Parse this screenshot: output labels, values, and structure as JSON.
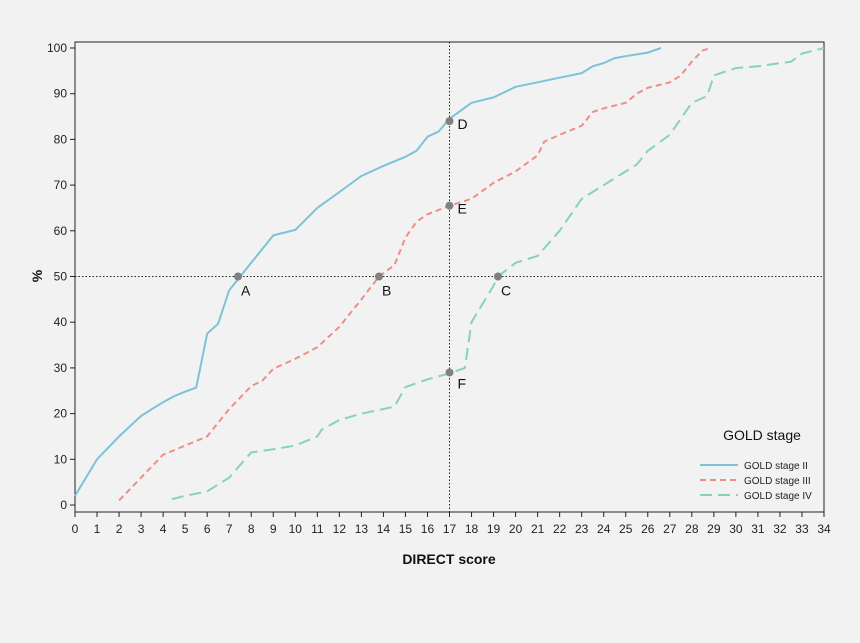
{
  "chart_data": {
    "type": "line",
    "title": "",
    "xlabel": "DIRECT score",
    "ylabel": "%",
    "xlim": [
      0,
      34
    ],
    "ylim": [
      0,
      100
    ],
    "xticks": [
      0,
      1,
      2,
      3,
      4,
      5,
      6,
      7,
      8,
      9,
      10,
      11,
      12,
      13,
      14,
      15,
      16,
      17,
      18,
      19,
      20,
      21,
      22,
      23,
      24,
      25,
      26,
      27,
      28,
      29,
      30,
      31,
      32,
      33,
      34
    ],
    "yticks": [
      0,
      10,
      20,
      30,
      40,
      50,
      60,
      70,
      80,
      90,
      100
    ],
    "grid": false,
    "legend": {
      "title": "GOLD stage",
      "position": "bottom-right"
    },
    "series": [
      {
        "name": "GOLD stage II",
        "color": "#7cc3d6",
        "dash": "solid",
        "points": [
          [
            0,
            2
          ],
          [
            1,
            10
          ],
          [
            2,
            15
          ],
          [
            3,
            19.5
          ],
          [
            4,
            22.5
          ],
          [
            4.5,
            23.8
          ],
          [
            5,
            24.8
          ],
          [
            5.5,
            25.7
          ],
          [
            6,
            37.5
          ],
          [
            6.5,
            39.7
          ],
          [
            7,
            47
          ],
          [
            7.5,
            50
          ],
          [
            8,
            53
          ],
          [
            9,
            59
          ],
          [
            10,
            60.2
          ],
          [
            11,
            65
          ],
          [
            12,
            68.5
          ],
          [
            13,
            72
          ],
          [
            14,
            74.2
          ],
          [
            15,
            76.2
          ],
          [
            15.5,
            77.5
          ],
          [
            16,
            80.6
          ],
          [
            16.5,
            81.7
          ],
          [
            17,
            84.5
          ],
          [
            18,
            88
          ],
          [
            19,
            89.2
          ],
          [
            20,
            91.5
          ],
          [
            21,
            92.5
          ],
          [
            22,
            93.5
          ],
          [
            23,
            94.5
          ],
          [
            23.5,
            96
          ],
          [
            24,
            96.7
          ],
          [
            24.5,
            97.8
          ],
          [
            25,
            98.2
          ],
          [
            26,
            99
          ],
          [
            26.6,
            100
          ]
        ]
      },
      {
        "name": "GOLD stage III",
        "color": "#ee8e88",
        "dash": "short",
        "points": [
          [
            2,
            1
          ],
          [
            3,
            6
          ],
          [
            4,
            11
          ],
          [
            5,
            13
          ],
          [
            6,
            15
          ],
          [
            7,
            21
          ],
          [
            8,
            26
          ],
          [
            8.5,
            27.2
          ],
          [
            9,
            29.8
          ],
          [
            10,
            32
          ],
          [
            11,
            34.5
          ],
          [
            12,
            39
          ],
          [
            13,
            45
          ],
          [
            13.8,
            50
          ],
          [
            14.5,
            52.5
          ],
          [
            15,
            58.5
          ],
          [
            15.5,
            62
          ],
          [
            16,
            63.6
          ],
          [
            17,
            65.5
          ],
          [
            18,
            67
          ],
          [
            19,
            70.5
          ],
          [
            20,
            73
          ],
          [
            21,
            76.5
          ],
          [
            21.3,
            79.5
          ],
          [
            22,
            81
          ],
          [
            23,
            83
          ],
          [
            23.5,
            86
          ],
          [
            24,
            86.8
          ],
          [
            25,
            88
          ],
          [
            25.5,
            90
          ],
          [
            26,
            91.3
          ],
          [
            27,
            92.5
          ],
          [
            27.5,
            94
          ],
          [
            28,
            97
          ],
          [
            28.5,
            99.5
          ],
          [
            28.9,
            100
          ]
        ]
      },
      {
        "name": "GOLD stage IV",
        "color": "#88d3b3",
        "dash": "long",
        "points": [
          [
            4.4,
            1.3
          ],
          [
            5,
            2
          ],
          [
            6,
            3
          ],
          [
            7,
            6
          ],
          [
            8,
            11.5
          ],
          [
            9,
            12.2
          ],
          [
            10,
            13
          ],
          [
            11,
            15
          ],
          [
            11.2,
            16.5
          ],
          [
            12,
            18.6
          ],
          [
            13,
            20
          ],
          [
            14,
            21
          ],
          [
            14.5,
            21.5
          ],
          [
            15,
            25.8
          ],
          [
            16,
            27.5
          ],
          [
            17,
            28.8
          ],
          [
            17.7,
            30
          ],
          [
            18,
            40
          ],
          [
            19,
            48
          ],
          [
            19.2,
            50
          ],
          [
            20,
            53
          ],
          [
            21,
            54.5
          ],
          [
            22,
            60
          ],
          [
            23,
            67
          ],
          [
            24,
            70
          ],
          [
            25,
            73
          ],
          [
            25.5,
            74.5
          ],
          [
            26,
            77.5
          ],
          [
            27,
            81
          ],
          [
            28,
            88
          ],
          [
            28.7,
            89.5
          ],
          [
            29,
            94
          ],
          [
            30,
            95.6
          ],
          [
            31,
            96
          ],
          [
            32,
            96.7
          ],
          [
            32.5,
            97
          ],
          [
            33,
            98.8
          ],
          [
            34,
            100
          ]
        ]
      }
    ],
    "reference_lines": {
      "horizontal_y": 50,
      "vertical_x": 17
    },
    "annotations": [
      {
        "label": "A",
        "x": 7.4,
        "y": 50
      },
      {
        "label": "B",
        "x": 13.8,
        "y": 50
      },
      {
        "label": "C",
        "x": 19.2,
        "y": 50
      },
      {
        "label": "D",
        "x": 17,
        "y": 84
      },
      {
        "label": "E",
        "x": 17,
        "y": 65.5
      },
      {
        "label": "F",
        "x": 17,
        "y": 29
      }
    ]
  }
}
